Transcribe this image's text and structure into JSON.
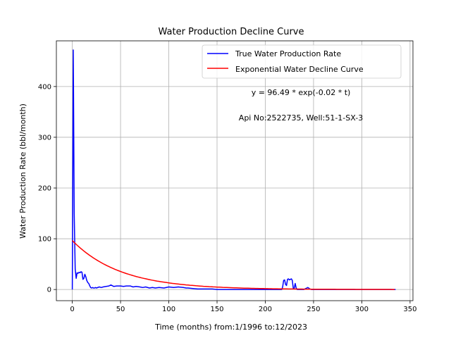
{
  "chart_data": {
    "type": "line",
    "title": "Water Production Decline Curve",
    "xlabel": "Time (months) from:1/1996 to:12/2023",
    "ylabel": "Water Production Rate (bbl/month)",
    "xlim": [
      -16.5,
      353
    ],
    "ylim": [
      -22,
      490
    ],
    "xticks": [
      0,
      50,
      100,
      150,
      200,
      250,
      300,
      350
    ],
    "yticks": [
      0,
      100,
      200,
      300,
      400
    ],
    "grid": true,
    "legend_position": "top-right",
    "annotations": [
      "y = 96.49 * exp(-0.02 * t)",
      "Api No:2522735, Well:51-1-SX-3"
    ],
    "series": [
      {
        "name": "True Water Production Rate",
        "color": "#0000ff",
        "x": [
          0,
          1,
          2,
          3,
          4,
          5,
          6,
          7,
          8,
          9,
          10,
          11,
          12,
          13,
          14,
          15,
          16,
          17,
          18,
          19,
          20,
          21,
          22,
          23,
          24,
          25,
          28,
          30,
          32,
          35,
          38,
          40,
          43,
          46,
          50,
          53,
          56,
          60,
          63,
          66,
          70,
          73,
          76,
          80,
          83,
          86,
          90,
          95,
          100,
          105,
          110,
          115,
          118,
          120,
          125,
          130,
          135,
          140,
          145,
          150,
          160,
          170,
          180,
          190,
          200,
          210,
          215,
          217,
          218,
          219,
          220,
          221,
          222,
          223,
          224,
          225,
          226,
          227,
          228,
          229,
          230,
          231,
          232,
          233,
          235,
          238,
          240,
          242,
          243,
          244,
          245,
          246,
          248,
          250,
          260,
          270,
          280,
          290,
          300,
          310,
          320,
          330,
          335
        ],
        "y": [
          0,
          472,
          150,
          40,
          22,
          33,
          32,
          34,
          33,
          35,
          34,
          20,
          22,
          30,
          25,
          18,
          14,
          12,
          8,
          4,
          3,
          4,
          3,
          3,
          4,
          3,
          5,
          4,
          5,
          6,
          7,
          9,
          6,
          7,
          7,
          6,
          7,
          7,
          5,
          6,
          5,
          4,
          5,
          3,
          4,
          3,
          4,
          3,
          5,
          4,
          5,
          4,
          3,
          3,
          2,
          1,
          1,
          1,
          1,
          0,
          0,
          0,
          0,
          0,
          0,
          0,
          0,
          0,
          5,
          18,
          19,
          10,
          8,
          20,
          21,
          19,
          20,
          21,
          18,
          2,
          3,
          12,
          3,
          0,
          0,
          0,
          0,
          2,
          3,
          4,
          3,
          1,
          0,
          0,
          0,
          0,
          0,
          0,
          0,
          0,
          0,
          0,
          0
        ]
      },
      {
        "name": "Exponential Water Decline Curve",
        "color": "#ff0000",
        "model": {
          "a": 96.49,
          "b": 0.02
        },
        "x_range": [
          0,
          335
        ]
      }
    ]
  }
}
